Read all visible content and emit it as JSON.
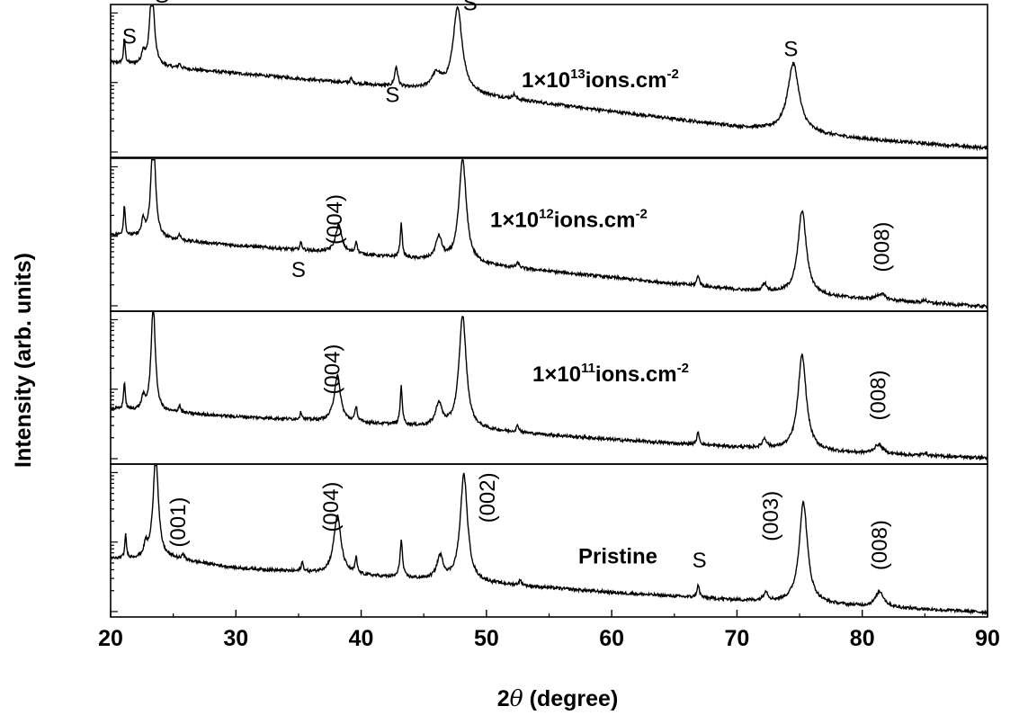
{
  "chart_data": {
    "type": "line",
    "xlabel_prefix": "2",
    "xlabel_symbol": "θ",
    "xlabel_suffix": " (degree)",
    "ylabel": "Intensity (arb. units)",
    "xlim": [
      20,
      90
    ],
    "x_ticks": [
      20,
      30,
      40,
      50,
      60,
      70,
      80,
      90
    ],
    "y_scale": "log",
    "grid": false,
    "panels": [
      {
        "name": "1×10¹³ ions.cm⁻²",
        "label_base": "1×10",
        "label_exp": "13",
        "label_unit": "ions.cm",
        "label_unit_exp": "-2",
        "baseline": [
          [
            20,
            0.62
          ],
          [
            30,
            0.55
          ],
          [
            40,
            0.48
          ],
          [
            50,
            0.4
          ],
          [
            60,
            0.3
          ],
          [
            70,
            0.2
          ],
          [
            80,
            0.12
          ],
          [
            90,
            0.06
          ]
        ],
        "peaks": [
          {
            "x": 21.1,
            "h": 0.16,
            "w": 0.08
          },
          {
            "x": 22.6,
            "h": 0.08,
            "w": 0.15
          },
          {
            "x": 23.3,
            "h": 0.56,
            "w": 0.2
          },
          {
            "x": 25.5,
            "h": 0.03,
            "w": 0.1
          },
          {
            "x": 39.2,
            "h": 0.03,
            "w": 0.1
          },
          {
            "x": 42.8,
            "h": 0.13,
            "w": 0.15
          },
          {
            "x": 46.0,
            "h": 0.1,
            "w": 0.5
          },
          {
            "x": 47.7,
            "h": 0.55,
            "w": 0.45
          },
          {
            "x": 52.2,
            "h": 0.03,
            "w": 0.15
          },
          {
            "x": 74.5,
            "h": 0.45,
            "w": 0.55
          }
        ],
        "annotations": [
          {
            "text": "S",
            "x": 21.5,
            "y": 0.78
          },
          {
            "text": "S",
            "x": 24.1,
            "y": 1.05
          },
          {
            "text": "S",
            "x": 42.5,
            "y": 0.4
          },
          {
            "text": "S",
            "x": 48.7,
            "y": 1.0
          },
          {
            "text": "S",
            "x": 74.3,
            "y": 0.7
          }
        ]
      },
      {
        "name": "1×10¹² ions.cm⁻²",
        "label_base": "1×10",
        "label_exp": "12",
        "label_unit": "ions.cm",
        "label_unit_exp": "-2",
        "baseline": [
          [
            20,
            0.5
          ],
          [
            30,
            0.43
          ],
          [
            40,
            0.37
          ],
          [
            50,
            0.3
          ],
          [
            60,
            0.22
          ],
          [
            70,
            0.14
          ],
          [
            80,
            0.08
          ],
          [
            90,
            0.03
          ]
        ],
        "peaks": [
          {
            "x": 21.1,
            "h": 0.2,
            "w": 0.08
          },
          {
            "x": 22.6,
            "h": 0.1,
            "w": 0.15
          },
          {
            "x": 23.4,
            "h": 0.72,
            "w": 0.2
          },
          {
            "x": 25.5,
            "h": 0.04,
            "w": 0.1
          },
          {
            "x": 35.2,
            "h": 0.05,
            "w": 0.1
          },
          {
            "x": 38.2,
            "h": 0.18,
            "w": 0.3
          },
          {
            "x": 39.6,
            "h": 0.08,
            "w": 0.1
          },
          {
            "x": 43.2,
            "h": 0.22,
            "w": 0.1
          },
          {
            "x": 46.2,
            "h": 0.15,
            "w": 0.3
          },
          {
            "x": 48.1,
            "h": 0.68,
            "w": 0.35
          },
          {
            "x": 52.5,
            "h": 0.03,
            "w": 0.15
          },
          {
            "x": 66.9,
            "h": 0.07,
            "w": 0.12
          },
          {
            "x": 72.2,
            "h": 0.05,
            "w": 0.2
          },
          {
            "x": 75.2,
            "h": 0.55,
            "w": 0.4
          },
          {
            "x": 81.5,
            "h": 0.04,
            "w": 0.4
          },
          {
            "x": 85.0,
            "h": 0.02,
            "w": 0.15
          }
        ],
        "annotations": [
          {
            "text": "S",
            "x": 35.0,
            "y": 0.26
          },
          {
            "text": "(004)",
            "x": 38.0,
            "y": 0.6,
            "rotated": true
          },
          {
            "text": "(008)",
            "x": 81.7,
            "y": 0.42,
            "rotated": true
          }
        ]
      },
      {
        "name": "1×10¹¹ ions.cm⁻²",
        "label_base": "1×10",
        "label_exp": "11",
        "label_unit": "ions.cm",
        "label_unit_exp": "-2",
        "baseline": [
          [
            20,
            0.36
          ],
          [
            30,
            0.31
          ],
          [
            40,
            0.27
          ],
          [
            50,
            0.22
          ],
          [
            60,
            0.16
          ],
          [
            70,
            0.11
          ],
          [
            80,
            0.07
          ],
          [
            90,
            0.04
          ]
        ],
        "peaks": [
          {
            "x": 21.1,
            "h": 0.18,
            "w": 0.08
          },
          {
            "x": 22.6,
            "h": 0.08,
            "w": 0.15
          },
          {
            "x": 23.4,
            "h": 0.7,
            "w": 0.2
          },
          {
            "x": 25.5,
            "h": 0.05,
            "w": 0.1
          },
          {
            "x": 35.2,
            "h": 0.05,
            "w": 0.1
          },
          {
            "x": 38.1,
            "h": 0.3,
            "w": 0.3
          },
          {
            "x": 39.6,
            "h": 0.1,
            "w": 0.1
          },
          {
            "x": 43.2,
            "h": 0.25,
            "w": 0.1
          },
          {
            "x": 46.2,
            "h": 0.15,
            "w": 0.3
          },
          {
            "x": 48.1,
            "h": 0.74,
            "w": 0.35
          },
          {
            "x": 52.5,
            "h": 0.04,
            "w": 0.15
          },
          {
            "x": 66.9,
            "h": 0.08,
            "w": 0.12
          },
          {
            "x": 72.2,
            "h": 0.06,
            "w": 0.2
          },
          {
            "x": 75.2,
            "h": 0.62,
            "w": 0.4
          },
          {
            "x": 81.3,
            "h": 0.06,
            "w": 0.4
          },
          {
            "x": 85.0,
            "h": 0.02,
            "w": 0.15
          }
        ],
        "annotations": [
          {
            "text": "(004)",
            "x": 37.8,
            "y": 0.62,
            "rotated": true
          },
          {
            "text": "(008)",
            "x": 81.4,
            "y": 0.45,
            "rotated": true
          }
        ]
      },
      {
        "name": "Pristine",
        "label_base": "Pristine",
        "label_exp": "",
        "label_unit": "",
        "label_unit_exp": "",
        "baseline": [
          [
            20,
            0.38
          ],
          [
            25,
            0.38
          ],
          [
            30,
            0.32
          ],
          [
            40,
            0.27
          ],
          [
            50,
            0.22
          ],
          [
            60,
            0.16
          ],
          [
            70,
            0.11
          ],
          [
            80,
            0.07
          ],
          [
            90,
            0.03
          ]
        ],
        "peaks": [
          {
            "x": 21.2,
            "h": 0.15,
            "w": 0.08
          },
          {
            "x": 22.8,
            "h": 0.08,
            "w": 0.15
          },
          {
            "x": 23.6,
            "h": 0.68,
            "w": 0.25
          },
          {
            "x": 25.8,
            "h": 0.04,
            "w": 0.1
          },
          {
            "x": 35.3,
            "h": 0.06,
            "w": 0.1
          },
          {
            "x": 38.1,
            "h": 0.38,
            "w": 0.35
          },
          {
            "x": 39.6,
            "h": 0.1,
            "w": 0.1
          },
          {
            "x": 43.2,
            "h": 0.24,
            "w": 0.12
          },
          {
            "x": 46.3,
            "h": 0.15,
            "w": 0.3
          },
          {
            "x": 48.2,
            "h": 0.7,
            "w": 0.35
          },
          {
            "x": 52.7,
            "h": 0.03,
            "w": 0.15
          },
          {
            "x": 66.9,
            "h": 0.08,
            "w": 0.12
          },
          {
            "x": 72.3,
            "h": 0.06,
            "w": 0.2
          },
          {
            "x": 75.3,
            "h": 0.66,
            "w": 0.4
          },
          {
            "x": 81.4,
            "h": 0.1,
            "w": 0.4
          }
        ],
        "annotations": [
          {
            "text": "(001)",
            "x": 25.5,
            "y": 0.62,
            "rotated": true
          },
          {
            "text": "(004)",
            "x": 37.7,
            "y": 0.72,
            "rotated": true
          },
          {
            "text": "(002)",
            "x": 50.2,
            "y": 0.78,
            "rotated": true
          },
          {
            "text": "S",
            "x": 67.0,
            "y": 0.36
          },
          {
            "text": "(003)",
            "x": 72.8,
            "y": 0.66,
            "rotated": true
          },
          {
            "text": "(008)",
            "x": 81.5,
            "y": 0.47,
            "rotated": true
          }
        ]
      }
    ]
  }
}
